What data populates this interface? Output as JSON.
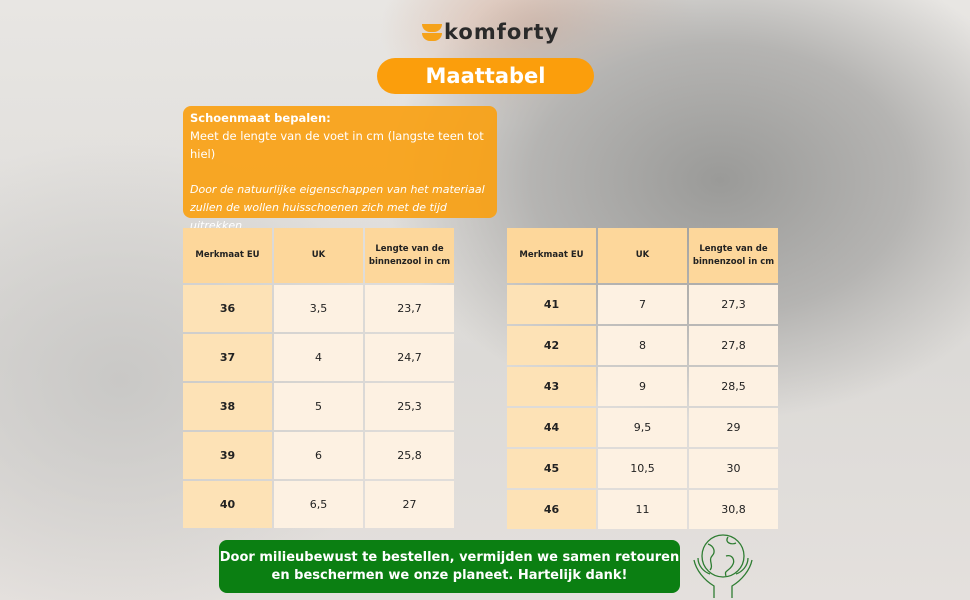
{
  "brand": "komforty",
  "title": "Maattabel",
  "info": {
    "heading": "Schoenmaat bepalen:",
    "text": "Meet de lengte van de voet in cm (langste teen tot hiel)",
    "note": "Door de natuurlijke eigenschappen van het materiaal zullen de wollen huisschoenen zich met de tijd uitrekken"
  },
  "columns": [
    "Merkmaat EU",
    "UK",
    "Lengte van de binnenzool in cm"
  ],
  "table_left": [
    [
      "36",
      "3,5",
      "23,7"
    ],
    [
      "37",
      "4",
      "24,7"
    ],
    [
      "38",
      "5",
      "25,3"
    ],
    [
      "39",
      "6",
      "25,8"
    ],
    [
      "40",
      "6,5",
      "27"
    ]
  ],
  "table_right": [
    [
      "41",
      "7",
      "27,3"
    ],
    [
      "42",
      "8",
      "27,8"
    ],
    [
      "43",
      "9",
      "28,5"
    ],
    [
      "44",
      "9,5",
      "29"
    ],
    [
      "45",
      "10,5",
      "30"
    ],
    [
      "46",
      "11",
      "30,8"
    ]
  ],
  "eco_message": "Door milieubewust te bestellen, vermijden we samen retouren en beschermen we onze planeet. Hartelijk dank!",
  "colors": {
    "orange": "#fb9e0c",
    "green": "#0b7f12"
  }
}
